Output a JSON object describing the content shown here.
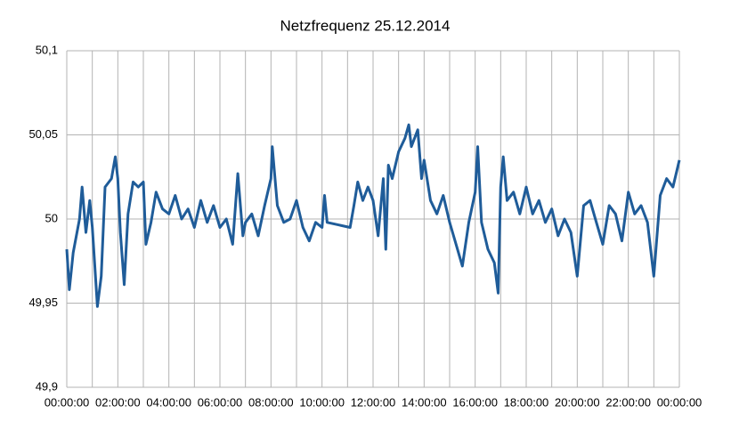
{
  "chart_data": {
    "type": "line",
    "title": "Netzfrequenz 25.12.2014",
    "x": [
      0,
      0.1,
      0.25,
      0.5,
      0.6,
      0.75,
      0.9,
      1.0,
      1.1,
      1.2,
      1.35,
      1.5,
      1.75,
      1.9,
      2.0,
      2.1,
      2.25,
      2.4,
      2.6,
      2.8,
      3.0,
      3.1,
      3.3,
      3.5,
      3.75,
      4.0,
      4.25,
      4.5,
      4.75,
      5.0,
      5.25,
      5.5,
      5.75,
      6.0,
      6.25,
      6.5,
      6.7,
      6.9,
      7.0,
      7.25,
      7.5,
      7.75,
      8.0,
      8.05,
      8.25,
      8.5,
      8.75,
      9.0,
      9.25,
      9.5,
      9.75,
      10.0,
      10.1,
      10.2,
      11.1,
      11.25,
      11.4,
      11.6,
      11.8,
      12.0,
      12.2,
      12.4,
      12.5,
      12.6,
      12.75,
      13.0,
      13.25,
      13.4,
      13.5,
      13.75,
      13.9,
      14.0,
      14.25,
      14.5,
      14.75,
      15.0,
      15.25,
      15.5,
      15.75,
      16.0,
      16.1,
      16.25,
      16.5,
      16.75,
      16.9,
      17.0,
      17.1,
      17.25,
      17.5,
      17.75,
      18.0,
      18.25,
      18.5,
      18.75,
      19.0,
      19.25,
      19.5,
      19.75,
      20.0,
      20.25,
      20.5,
      20.75,
      21.0,
      21.25,
      21.5,
      21.75,
      22.0,
      22.25,
      22.5,
      22.75,
      23.0,
      23.25,
      23.5,
      23.75,
      24.0
    ],
    "series": [
      {
        "color": "#1f5c99",
        "values": [
          49.982,
          49.958,
          49.98,
          50.0,
          50.019,
          49.992,
          50.011,
          49.995,
          49.972,
          49.948,
          49.966,
          50.019,
          50.024,
          50.037,
          50.024,
          49.992,
          49.961,
          50.003,
          50.022,
          50.019,
          50.022,
          49.985,
          49.998,
          50.016,
          50.006,
          50.003,
          50.014,
          50.0,
          50.006,
          49.995,
          50.011,
          49.998,
          50.008,
          49.995,
          50.0,
          49.985,
          50.027,
          49.99,
          49.998,
          50.003,
          49.99,
          50.008,
          50.024,
          50.043,
          50.008,
          49.998,
          50.0,
          50.011,
          49.995,
          49.987,
          49.998,
          49.995,
          50.014,
          49.998,
          49.995,
          50.008,
          50.022,
          50.011,
          50.019,
          50.011,
          49.99,
          50.024,
          49.982,
          50.032,
          50.024,
          50.04,
          50.048,
          50.056,
          50.043,
          50.053,
          50.024,
          50.035,
          50.011,
          50.003,
          50.014,
          49.998,
          49.985,
          49.972,
          49.998,
          50.016,
          50.043,
          49.998,
          49.982,
          49.974,
          49.956,
          50.019,
          50.037,
          50.011,
          50.016,
          50.003,
          50.019,
          50.003,
          50.011,
          49.998,
          50.006,
          49.99,
          50.0,
          49.992,
          49.966,
          50.008,
          50.011,
          49.998,
          49.985,
          50.008,
          50.003,
          49.987,
          50.016,
          50.003,
          50.008,
          49.998,
          49.966,
          50.014,
          50.024,
          50.019,
          50.035
        ]
      }
    ],
    "xlim": [
      0,
      24
    ],
    "xticks": [
      {
        "value": 0,
        "label": "00:00:00"
      },
      {
        "value": 2,
        "label": "02:00:00"
      },
      {
        "value": 4,
        "label": "04:00:00"
      },
      {
        "value": 6,
        "label": "06:00:00"
      },
      {
        "value": 8,
        "label": "08:00:00"
      },
      {
        "value": 10,
        "label": "10:00:00"
      },
      {
        "value": 12,
        "label": "12:00:00"
      },
      {
        "value": 14,
        "label": "14:00:00"
      },
      {
        "value": 16,
        "label": "16:00:00"
      },
      {
        "value": 18,
        "label": "18:00:00"
      },
      {
        "value": 20,
        "label": "20:00:00"
      },
      {
        "value": 22,
        "label": "22:00:00"
      },
      {
        "value": 24,
        "label": "00:00:00"
      }
    ],
    "xminorticks": [
      1,
      3,
      5,
      7,
      9,
      11,
      13,
      15,
      17,
      19,
      21,
      23
    ],
    "ylim": [
      49.9,
      50.1
    ],
    "yticks": [
      {
        "value": 49.9,
        "label": "49,9"
      },
      {
        "value": 49.95,
        "label": "49,95"
      },
      50,
      {
        "value": 50.05,
        "label": "50,05"
      },
      {
        "value": 50.1,
        "label": "50,1"
      }
    ],
    "grid": true
  }
}
